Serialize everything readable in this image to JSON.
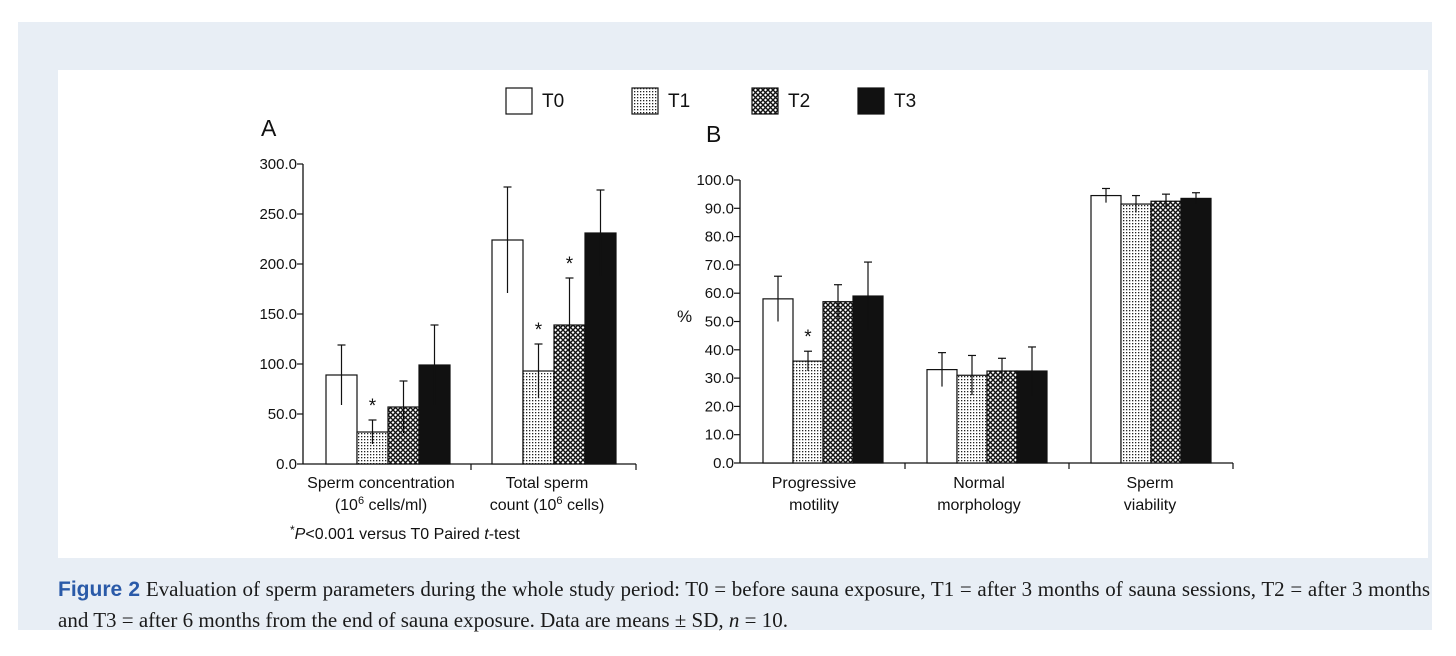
{
  "legend": [
    {
      "key": "T0",
      "label": "T0",
      "pattern": "white"
    },
    {
      "key": "T1",
      "label": "T1",
      "pattern": "dots"
    },
    {
      "key": "T2",
      "label": "T2",
      "pattern": "cross"
    },
    {
      "key": "T3",
      "label": "T3",
      "pattern": "black"
    }
  ],
  "footnote": {
    "star": "*",
    "p": "P",
    "rest1": "<0.001 versus  T0 Paired ",
    "t": "t",
    "rest2": "-test"
  },
  "caption": {
    "label": "Figure 2",
    "part1": "Evaluation of sperm parameters during the whole study period: T0 = before sauna exposure, T1 = after 3 months of sauna sessions, T2 = after 3 months and T3 = after 6 months from the end of sauna exposure. Data are means ± SD, ",
    "n": "n",
    "part2": " = 10."
  },
  "chart_data": [
    {
      "panel": "A",
      "type": "bar",
      "ylabel": "",
      "ylim": [
        0,
        300
      ],
      "yticks": [
        "0.0",
        "50.0",
        "100.0",
        "150.0",
        "200.0",
        "250.0",
        "300.0"
      ],
      "categories": [
        {
          "line1": "Sperm concentration",
          "line2a": "(10",
          "sup": "6",
          "line2b": " cells/ml)"
        },
        {
          "line1": "Total sperm",
          "line2a": "count (10",
          "sup": "6",
          "line2b": " cells)"
        }
      ],
      "series": [
        {
          "name": "T0",
          "values": [
            89,
            224
          ],
          "sd": [
            30,
            53
          ],
          "star": [
            false,
            false
          ]
        },
        {
          "name": "T1",
          "values": [
            32,
            93
          ],
          "sd": [
            12,
            27
          ],
          "star": [
            true,
            true
          ]
        },
        {
          "name": "T2",
          "values": [
            57,
            139
          ],
          "sd": [
            26,
            47
          ],
          "star": [
            false,
            true
          ]
        },
        {
          "name": "T3",
          "values": [
            99,
            231
          ],
          "sd": [
            40,
            43
          ],
          "star": [
            false,
            false
          ]
        }
      ]
    },
    {
      "panel": "B",
      "type": "bar",
      "ylabel": "%",
      "ylim": [
        0,
        100
      ],
      "yticks": [
        "0.0",
        "10.0",
        "20.0",
        "30.0",
        "40.0",
        "50.0",
        "60.0",
        "70.0",
        "80.0",
        "90.0",
        "100.0"
      ],
      "categories": [
        {
          "line1": "Progressive",
          "line2a": "motility",
          "sup": "",
          "line2b": ""
        },
        {
          "line1": "Normal",
          "line2a": "morphology",
          "sup": "",
          "line2b": ""
        },
        {
          "line1": "Sperm",
          "line2a": "viability",
          "sup": "",
          "line2b": ""
        }
      ],
      "series": [
        {
          "name": "T0",
          "values": [
            58,
            33,
            94.5
          ],
          "sd": [
            8,
            6,
            2.5
          ],
          "star": [
            false,
            false,
            false
          ]
        },
        {
          "name": "T1",
          "values": [
            36,
            31,
            91.5
          ],
          "sd": [
            3.5,
            7,
            3
          ],
          "star": [
            true,
            false,
            false
          ]
        },
        {
          "name": "T2",
          "values": [
            57,
            32.5,
            92.5
          ],
          "sd": [
            6,
            4.5,
            2.5
          ],
          "star": [
            false,
            false,
            false
          ]
        },
        {
          "name": "T3",
          "values": [
            59,
            32.5,
            93.5
          ],
          "sd": [
            12,
            8.5,
            2
          ],
          "star": [
            false,
            false,
            false
          ]
        }
      ]
    }
  ]
}
